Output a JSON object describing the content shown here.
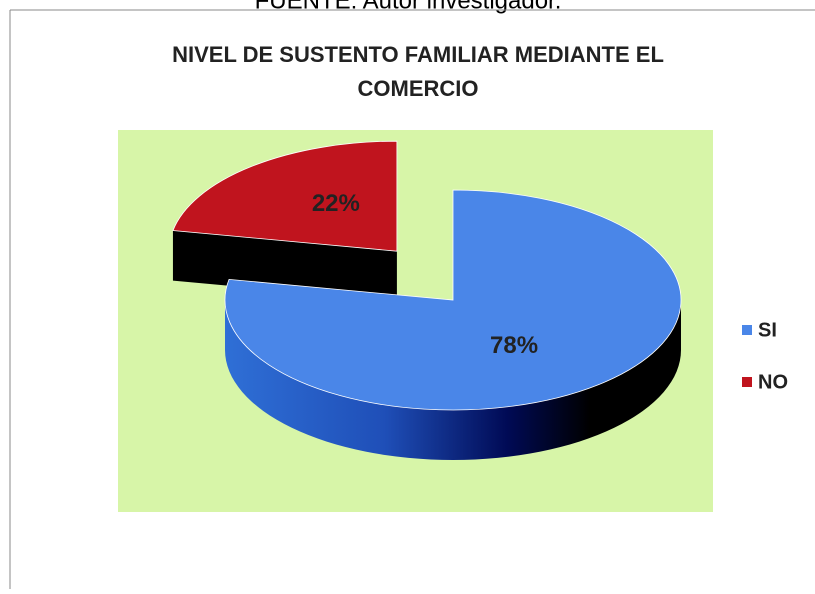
{
  "source": "FUENTE: Autor investigador.",
  "chart_data": {
    "type": "pie3d",
    "title": "NIVEL DE SUSTENTO FAMILIAR MEDIANTE EL COMERCIO",
    "categories": [
      "SI",
      "NO"
    ],
    "values": [
      78,
      22
    ],
    "value_labels": [
      "78%",
      "22%"
    ],
    "colors": [
      "#4a86e8",
      "#c0141e"
    ],
    "exploded": [
      false,
      true
    ],
    "legend": "right"
  }
}
